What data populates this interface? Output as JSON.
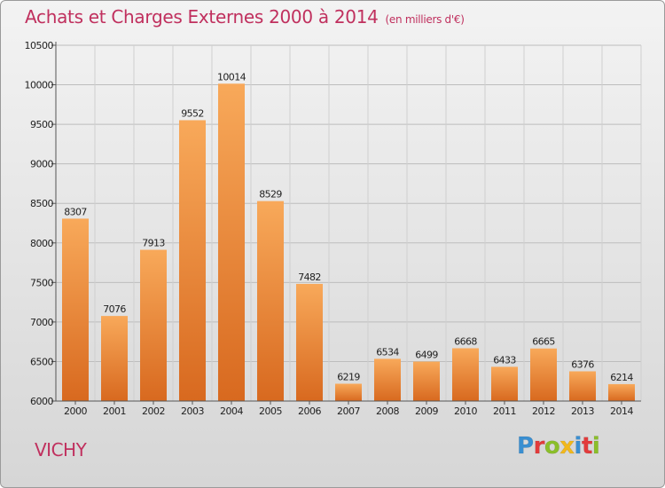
{
  "title": "Achats et Charges Externes 2000 à 2014",
  "unit": "(en milliers d'€)",
  "location": "VICHY",
  "logo": {
    "text": "Proxiti",
    "letter_colors": [
      "#3a8fd1",
      "#e23b3b",
      "#8bbf2a",
      "#f2b81c",
      "#3a8fd1",
      "#e23b3b",
      "#8bbf2a"
    ]
  },
  "colors": {
    "title": "#c0305e",
    "bar_light": "#f8a95a",
    "bar_dark": "#d8691f"
  },
  "chart_data": {
    "type": "bar",
    "categories": [
      "2000",
      "2001",
      "2002",
      "2003",
      "2004",
      "2005",
      "2006",
      "2007",
      "2008",
      "2009",
      "2010",
      "2011",
      "2012",
      "2013",
      "2014"
    ],
    "values": [
      8307,
      7076,
      7913,
      9552,
      10014,
      8529,
      7482,
      6219,
      6534,
      6499,
      6668,
      6433,
      6665,
      6376,
      6214
    ],
    "ylim": [
      6000,
      10500
    ],
    "yticks": [
      6000,
      6500,
      7000,
      7500,
      8000,
      8500,
      9000,
      9500,
      10000,
      10500
    ],
    "grid": true,
    "data_labels": true
  }
}
